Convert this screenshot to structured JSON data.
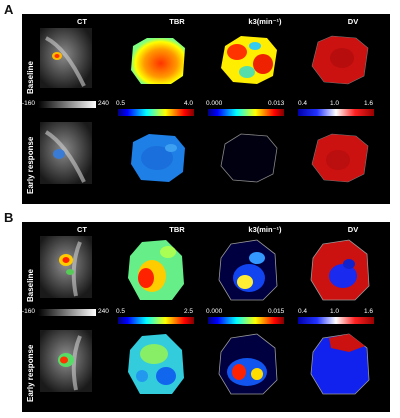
{
  "panels": [
    {
      "letter": "A",
      "columns": [
        "CT",
        "TBR",
        "k3(min⁻¹)",
        "DV"
      ],
      "rows": [
        "Baseline",
        "Early response"
      ],
      "scales": [
        {
          "min": "-160",
          "max": "240"
        },
        {
          "min": "0.5",
          "max": "4.0"
        },
        {
          "min": "0.000",
          "max": "0.013"
        },
        {
          "min": "0.4",
          "mid": "1.0",
          "max": "1.6"
        }
      ]
    },
    {
      "letter": "B",
      "columns": [
        "CT",
        "TBR",
        "k3(min⁻¹)",
        "DV"
      ],
      "rows": [
        "Baseline",
        "Early response"
      ],
      "scales": [
        {
          "min": "-160",
          "max": "240"
        },
        {
          "min": "0.5",
          "max": "2.5"
        },
        {
          "min": "0.000",
          "max": "0.015"
        },
        {
          "min": "0.4",
          "mid": "1.0",
          "max": "1.6"
        }
      ]
    }
  ],
  "colors": {
    "jet": [
      "#00007f",
      "#0000ff",
      "#0080ff",
      "#00ffff",
      "#80ff80",
      "#ffff00",
      "#ff8000",
      "#ff0000",
      "#7f0000"
    ],
    "bwr": [
      "#0000aa",
      "#2233ff",
      "#ffffff",
      "#ff2222",
      "#990000"
    ],
    "gray": [
      "#000000",
      "#ffffff"
    ]
  }
}
